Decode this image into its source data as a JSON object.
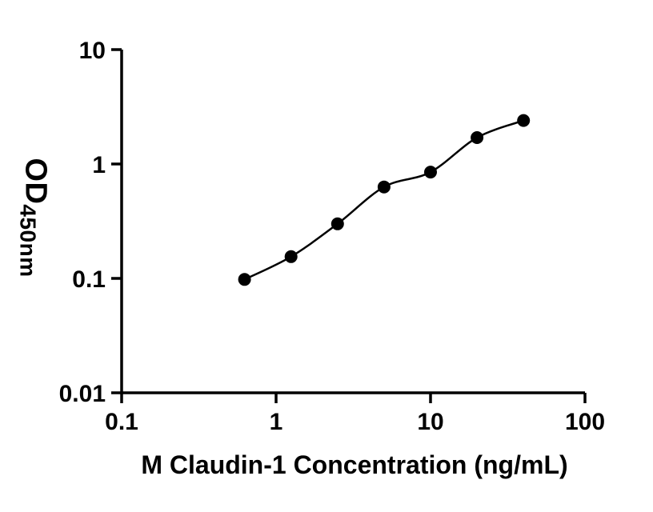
{
  "figure": {
    "background": "#ffffff",
    "ink_color": "#000000"
  },
  "chart_data": {
    "type": "scatter",
    "title": "",
    "xlabel": "M Claudin-1 Concentration (ng/mL)",
    "ylabel_main": "OD",
    "ylabel_sub": "450nm",
    "xscale": "log",
    "yscale": "log",
    "xlim": [
      0.1,
      100
    ],
    "ylim": [
      0.01,
      10
    ],
    "x_ticks": [
      0.1,
      1,
      10,
      100
    ],
    "x_tick_labels": [
      "0.1",
      "1",
      "10",
      "100"
    ],
    "y_ticks": [
      0.01,
      0.1,
      1,
      10
    ],
    "y_tick_labels": [
      "0.01",
      "0.1",
      "1",
      "10"
    ],
    "grid": false,
    "legend": false,
    "x": [
      0.625,
      1.25,
      2.5,
      5,
      10,
      20,
      40
    ],
    "y": [
      0.098,
      0.155,
      0.3,
      0.63,
      0.85,
      1.7,
      2.4
    ],
    "curve": "smooth-fit-through-points",
    "marker_color": "#000000",
    "line_color": "#000000",
    "axis_color": "#000000"
  }
}
